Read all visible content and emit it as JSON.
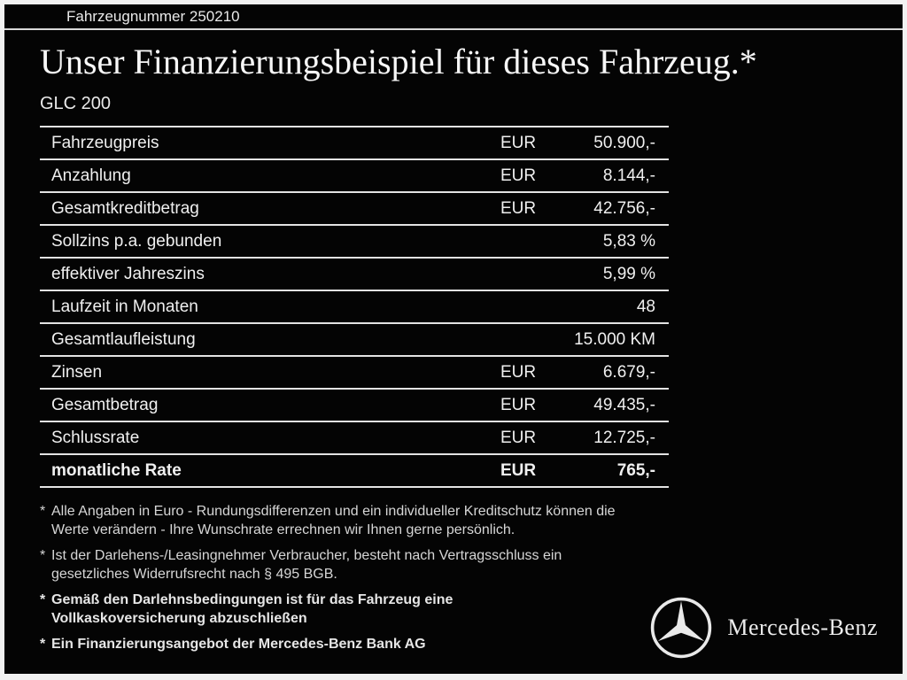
{
  "header": {
    "vehicle_number": "Fahrzeugnummer 250210",
    "title": "Unser Finanzierungsbeispiel für dieses Fahrzeug.*",
    "model": "GLC 200"
  },
  "table": {
    "rows": [
      {
        "label": "Fahrzeugpreis",
        "currency": "EUR",
        "value": "50.900,-",
        "bold": false
      },
      {
        "label": "Anzahlung",
        "currency": "EUR",
        "value": "8.144,-",
        "bold": false
      },
      {
        "label": "Gesamtkreditbetrag",
        "currency": "EUR",
        "value": "42.756,-",
        "bold": false
      },
      {
        "label": "Sollzins p.a. gebunden",
        "currency": "",
        "value": "5,83 %",
        "bold": false
      },
      {
        "label": "effektiver Jahreszins",
        "currency": "",
        "value": "5,99 %",
        "bold": false
      },
      {
        "label": "Laufzeit in Monaten",
        "currency": "",
        "value": "48",
        "bold": false
      },
      {
        "label": "Gesamtlaufleistung",
        "currency": "",
        "value": "15.000 KM",
        "bold": false
      },
      {
        "label": "Zinsen",
        "currency": "EUR",
        "value": "6.679,-",
        "bold": false
      },
      {
        "label": "Gesamtbetrag",
        "currency": "EUR",
        "value": "49.435,-",
        "bold": false
      },
      {
        "label": "Schlussrate",
        "currency": "EUR",
        "value": "12.725,-",
        "bold": false
      },
      {
        "label": "monatliche Rate",
        "currency": "EUR",
        "value": "765,-",
        "bold": true
      }
    ]
  },
  "footnotes": [
    {
      "marker": "*",
      "bold": false,
      "text": "Alle Angaben in Euro - Rundungsdifferenzen und ein individueller Kreditschutz können die\nWerte verändern - Ihre Wunschrate errechnen wir Ihnen gerne persönlich."
    },
    {
      "marker": "*",
      "bold": false,
      "text": "Ist der Darlehens-/Leasingnehmer Verbraucher, besteht nach Vertragsschluss ein\ngesetzliches Widerrufsrecht nach § 495 BGB."
    },
    {
      "marker": "*",
      "bold": true,
      "text": "Gemäß den Darlehnsbedingungen ist für das Fahrzeug eine\nVollkaskoversicherung abzuschließen"
    },
    {
      "marker": "*",
      "bold": true,
      "text": "Ein Finanzierungsangebot der Mercedes-Benz Bank AG"
    }
  ],
  "brand": {
    "logo_icon": "mercedes-star-icon",
    "name": "Mercedes-Benz"
  },
  "colors": {
    "background": "#000000",
    "frame": "#f2f2f2",
    "text": "#f0f0f0",
    "divider": "#e3e3e3"
  }
}
